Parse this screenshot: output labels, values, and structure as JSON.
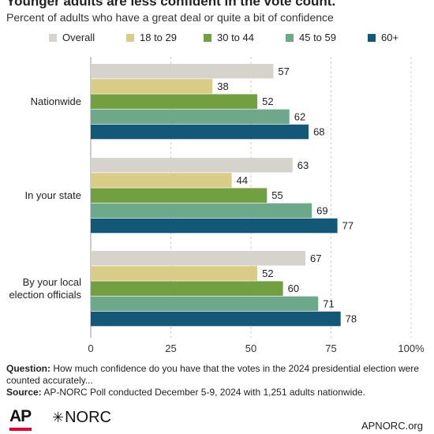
{
  "header": {
    "title": "Younger adults are less confident in the vote count.",
    "subtitle": "Percent of adults who have a great deal or quite a bit of confidence"
  },
  "colors": {
    "Overall": "#d6d3cd",
    "18 to 29": "#d9cc86",
    "30 to 44": "#72a041",
    "45 to 59": "#6ea88b",
    "60+": "#135977",
    "grid": "#cccccc"
  },
  "chart_data": {
    "type": "bar",
    "orientation": "horizontal",
    "categories": [
      "Nationwide",
      "In your state",
      "By your local election officials"
    ],
    "series": [
      {
        "name": "Overall",
        "values": [
          57,
          63,
          67
        ]
      },
      {
        "name": "18 to 29",
        "values": [
          38,
          44,
          52
        ]
      },
      {
        "name": "30 to 44",
        "values": [
          52,
          55,
          60
        ]
      },
      {
        "name": "45 to 59",
        "values": [
          62,
          69,
          71
        ]
      },
      {
        "name": "60+",
        "values": [
          68,
          77,
          78
        ]
      }
    ],
    "xlim": [
      0,
      100
    ],
    "xticks": [
      "0",
      "25",
      "50",
      "75",
      "100%"
    ],
    "legend": "top",
    "grid": true
  },
  "footer": {
    "question_label": "Question:",
    "question_text": "How much confidence do you have that the votes in the 2024 presidential election were counted accurately...",
    "source_label": "Source:",
    "source_text": "AP-NORC Poll conducted December 5-9, 2024 with 1,251 adults nationwide."
  },
  "branding": {
    "ap": "AP",
    "norc": "NORC",
    "site": "APNORC.org"
  }
}
